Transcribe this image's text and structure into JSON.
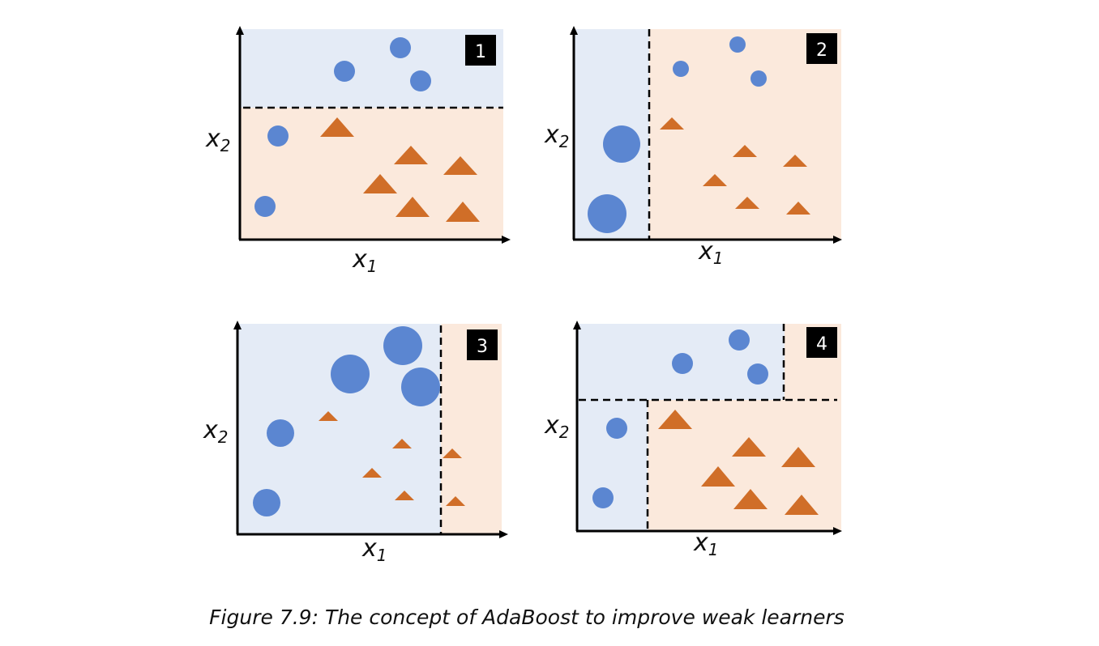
{
  "colors": {
    "blue_region": "#e4ebf6",
    "orange_region": "#fbe9dc",
    "circle": "#5b86d1",
    "triangle": "#d06e28",
    "axis": "#000000",
    "badge_bg": "#000000",
    "badge_text": "#ffffff"
  },
  "panels": [
    {
      "badge": "1",
      "x_label": "x",
      "x_sub": "1",
      "y_label": "x",
      "y_sub": "2"
    },
    {
      "badge": "2",
      "x_label": "x",
      "x_sub": "1",
      "y_label": "x",
      "y_sub": "2"
    },
    {
      "badge": "3",
      "x_label": "x",
      "x_sub": "1",
      "y_label": "x",
      "y_sub": "2"
    },
    {
      "badge": "4",
      "x_label": "x",
      "x_sub": "1",
      "y_label": "x",
      "y_sub": "2"
    }
  ],
  "caption": "Figure 7.9: The concept of AdaBoost to improve weak learners"
}
